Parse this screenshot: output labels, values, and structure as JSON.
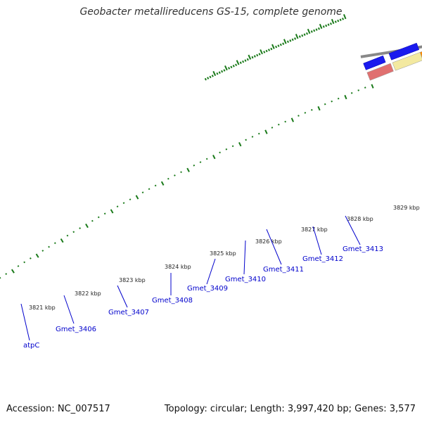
{
  "title": "Geobacter metallireducens GS-15, complete genome",
  "footer": {
    "accession": "Accession: NC_007517",
    "summary": "Topology: circular; Length: 3,997,420 bp; Genes: 3,577"
  },
  "colors": {
    "backbone": "#888888",
    "cds_forward": "#1a1aee",
    "cds_reverse": "#2ee8f0",
    "orange_feature": "#ff8c00",
    "pale_feature": "#f3e9a0",
    "red_feature": "#e07070",
    "tick": "#1a7a1a",
    "label": "#0000cc"
  },
  "scale_labels": [
    "3821 kbp",
    "3822 kbp",
    "3823 kbp",
    "3824 kbp",
    "3825 kbp",
    "3826 kbp",
    "3827 kbp",
    "3828 kbp",
    "3829 kbp"
  ],
  "gene_labels": [
    "atpC",
    "Gmet_3406",
    "Gmet_3407",
    "Gmet_3408",
    "Gmet_3409",
    "Gmet_3410",
    "Gmet_3411",
    "Gmet_3412",
    "Gmet_3413"
  ]
}
